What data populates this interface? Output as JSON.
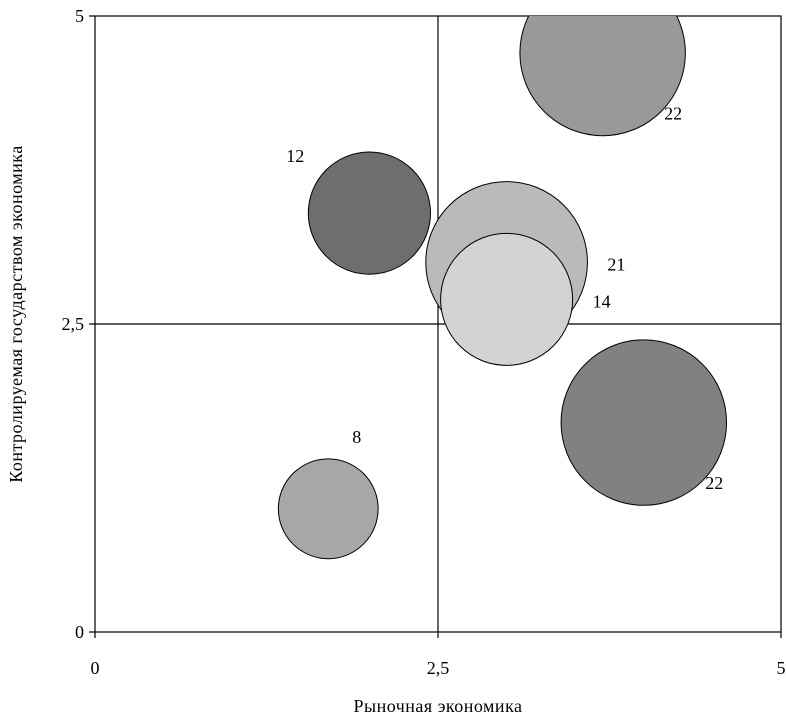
{
  "chart_data": {
    "type": "bubble",
    "xlabel": "Рыночная экономика",
    "ylabel": "Контролируемая государством экономика",
    "xlim": [
      0,
      5
    ],
    "ylim": [
      0,
      5
    ],
    "x_ticks": [
      0,
      2.5,
      5
    ],
    "y_ticks": [
      0,
      2.5,
      5
    ],
    "x_tick_labels": [
      "0",
      "2,5",
      "5"
    ],
    "y_tick_labels": [
      "0",
      "2,5",
      "5"
    ],
    "divider_lines": {
      "x": 2.5,
      "y": 2.5
    },
    "legend": "none",
    "grid": false,
    "bubbles": [
      {
        "x": 3.7,
        "y": 4.7,
        "size": 22,
        "label": "22",
        "label_pos": "lower-right",
        "color": "#99999c"
      },
      {
        "x": 2.0,
        "y": 3.4,
        "size": 12,
        "label": "12",
        "label_pos": "upper-left",
        "color": "#6e6e70"
      },
      {
        "x": 3.0,
        "y": 3.0,
        "size": 21,
        "label": "21",
        "label_pos": "right",
        "color": "#b9babc"
      },
      {
        "x": 3.0,
        "y": 2.7,
        "size": 14,
        "label": "14",
        "label_pos": "right",
        "color": "#d2d3d5"
      },
      {
        "x": 4.0,
        "y": 1.7,
        "size": 22,
        "label": "22",
        "label_pos": "lower-right",
        "color": "#818184"
      },
      {
        "x": 1.7,
        "y": 1.0,
        "size": 8,
        "label": "8",
        "label_pos": "upper-right",
        "color": "#a6a7a9"
      }
    ]
  }
}
